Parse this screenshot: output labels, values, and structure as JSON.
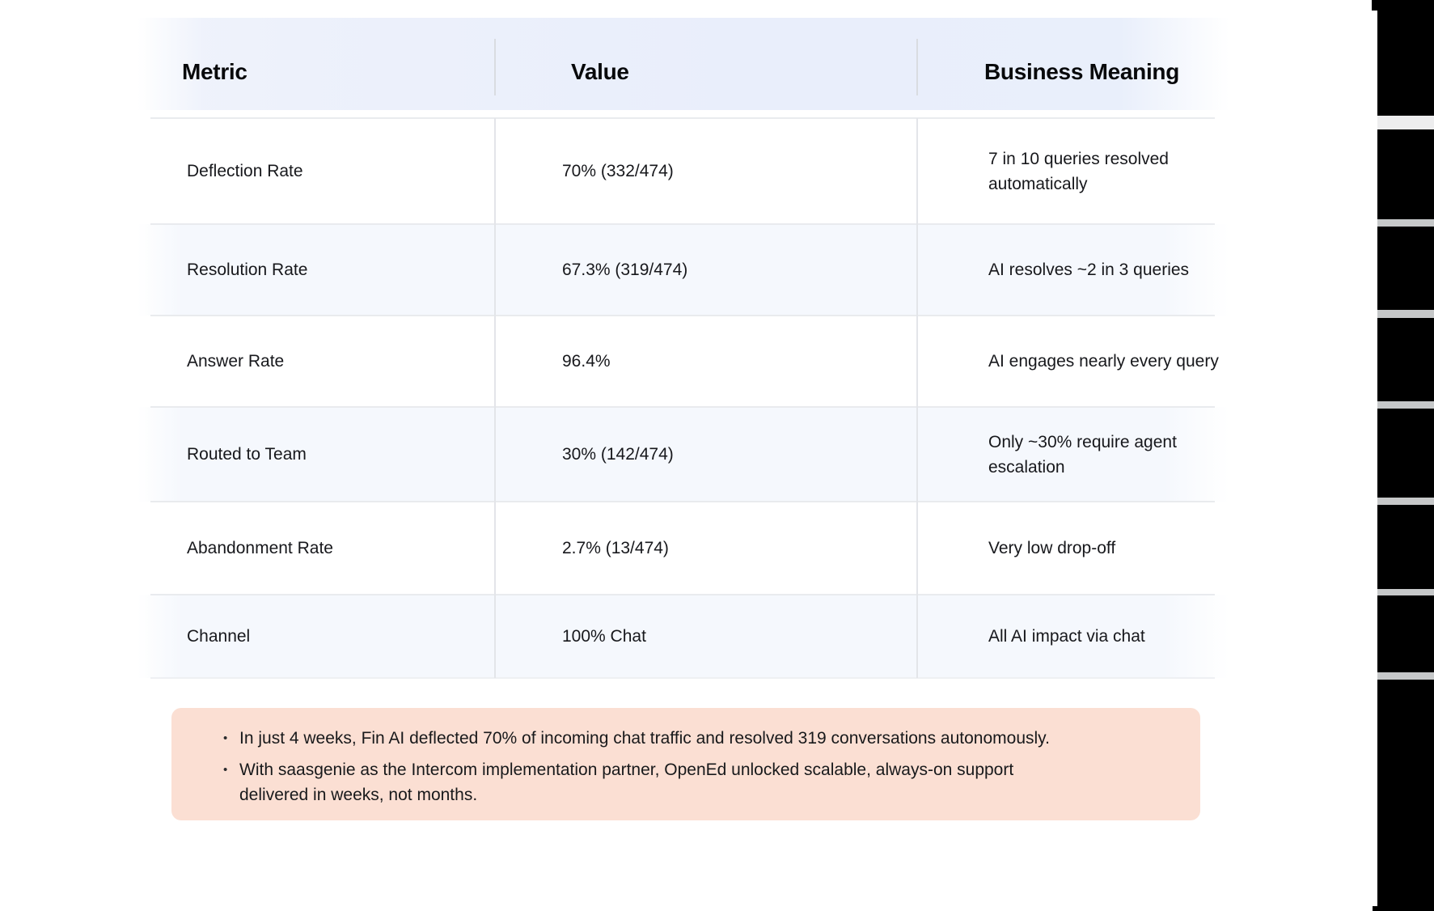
{
  "table": {
    "columns": [
      "Metric",
      "Value",
      "Business Meaning"
    ],
    "rows": [
      {
        "metric": "Deflection Rate",
        "value": "70% (332/474)",
        "meaning": [
          "7 in 10 queries resolved",
          "automatically"
        ]
      },
      {
        "metric": "Resolution Rate",
        "value": "67.3% (319/474)",
        "meaning": [
          "AI resolves ~2 in 3 queries"
        ]
      },
      {
        "metric": "Answer Rate",
        "value": "96.4%",
        "meaning": [
          "AI engages nearly every query"
        ]
      },
      {
        "metric": "Routed to Team",
        "value": "30% (142/474)",
        "meaning": [
          "Only ~30% require agent",
          "escalation"
        ]
      },
      {
        "metric": "Abandonment Rate",
        "value": "2.7% (13/474)",
        "meaning": [
          "Very low drop-off"
        ]
      },
      {
        "metric": "Channel",
        "value": "100% Chat",
        "meaning": [
          "All AI impact via chat"
        ]
      }
    ]
  },
  "callout": {
    "bullet_glyph": "•",
    "bullets": [
      [
        "In just 4 weeks, Fin AI deflected 70% of incoming chat traffic and resolved 319 conversations autonomously."
      ],
      [
        "With saasgenie as the Intercom implementation partner, OpenEd unlocked scalable, always-on support",
        "delivered in weeks, not months."
      ]
    ]
  },
  "colors": {
    "callout_bg": "#fbdfd3",
    "row_tint": "#f5f8fd",
    "edge_panel": "#000000",
    "edge_bar": "#c6c8c9",
    "edge_bar_light": "#ededee"
  }
}
